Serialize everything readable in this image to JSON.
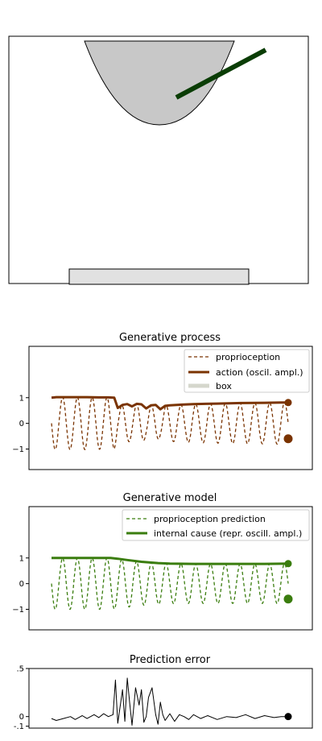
{
  "colors": {
    "action": "#7a3300",
    "proprio": "#7a3300",
    "model": "#3a7d0e",
    "box": "#d5d7cc",
    "arm": "#0a3d05",
    "cup": "#c8c8c8",
    "base": "#e1e1e1",
    "error": "#000000"
  },
  "scene": {
    "objects": [
      "cup",
      "arm",
      "base-box"
    ]
  },
  "chart_data": [
    {
      "type": "line",
      "title": "Generative process",
      "ylim": [
        -1.8,
        3.0
      ],
      "yticks": [
        {
          "v": 1,
          "label": "1"
        },
        {
          "v": 0,
          "label": "0"
        },
        {
          "v": -1,
          "label": "−1"
        }
      ],
      "legend": [
        "proprioception",
        "action (oscil. ampl.)",
        "box"
      ],
      "legend_position": "top-right",
      "series": [
        {
          "name": "action (oscil. ampl.)",
          "x": [
            0,
            0.02,
            0.05,
            0.1,
            0.15,
            0.2,
            0.24,
            0.265,
            0.28,
            0.3,
            0.32,
            0.34,
            0.36,
            0.38,
            0.4,
            0.42,
            0.44,
            0.46,
            0.48,
            0.5,
            0.55,
            0.6,
            0.7,
            0.8,
            0.9,
            0.97,
            1.0
          ],
          "values": [
            1.0,
            1.02,
            1.02,
            1.02,
            1.02,
            1.01,
            1.01,
            1.0,
            0.6,
            0.72,
            0.75,
            0.66,
            0.76,
            0.74,
            0.58,
            0.7,
            0.72,
            0.55,
            0.68,
            0.7,
            0.73,
            0.75,
            0.77,
            0.79,
            0.8,
            0.81,
            0.81
          ],
          "end_marker": 0.81
        },
        {
          "name": "proprioception",
          "cycles": 16,
          "end_marker": -0.6
        }
      ]
    },
    {
      "type": "line",
      "title": "Generative model",
      "ylim": [
        -1.8,
        3.0
      ],
      "yticks": [
        {
          "v": 1,
          "label": "1"
        },
        {
          "v": 0,
          "label": "0"
        },
        {
          "v": -1,
          "label": "−1"
        }
      ],
      "legend": [
        "proprioception prediction",
        "internal cause (repr. oscill. ampl.)"
      ],
      "legend_position": "top-right",
      "series": [
        {
          "name": "internal cause (repr. oscill. ampl.)",
          "x": [
            0,
            0.1,
            0.2,
            0.25,
            0.28,
            0.32,
            0.38,
            0.45,
            0.5,
            0.6,
            0.7,
            0.8,
            0.9,
            1.0
          ],
          "values": [
            1.0,
            1.0,
            1.0,
            1.0,
            0.97,
            0.92,
            0.85,
            0.8,
            0.78,
            0.77,
            0.77,
            0.77,
            0.77,
            0.78
          ],
          "end_marker": 0.78
        },
        {
          "name": "proprioception prediction",
          "cycles": 16,
          "end_marker": -0.6
        }
      ]
    },
    {
      "type": "line",
      "title": "Prediction error",
      "ylim": [
        -0.12,
        0.5
      ],
      "yticks": [
        {
          "v": 0.5,
          "label": ".5"
        },
        {
          "v": 0,
          "label": "0"
        },
        {
          "v": -0.1,
          "label": "-.1"
        }
      ],
      "series": [
        {
          "name": "prediction error",
          "x": [
            0,
            0.02,
            0.05,
            0.08,
            0.1,
            0.13,
            0.15,
            0.18,
            0.2,
            0.22,
            0.24,
            0.26,
            0.27,
            0.28,
            0.3,
            0.31,
            0.32,
            0.33,
            0.34,
            0.355,
            0.37,
            0.38,
            0.39,
            0.4,
            0.41,
            0.425,
            0.44,
            0.45,
            0.46,
            0.47,
            0.48,
            0.5,
            0.52,
            0.54,
            0.56,
            0.58,
            0.6,
            0.63,
            0.66,
            0.7,
            0.74,
            0.78,
            0.82,
            0.86,
            0.9,
            0.94,
            0.97,
            1.0
          ],
          "values": [
            -0.02,
            -0.04,
            -0.02,
            0.0,
            -0.03,
            0.01,
            -0.02,
            0.02,
            -0.01,
            0.03,
            0.0,
            0.02,
            0.38,
            -0.07,
            0.28,
            -0.05,
            0.4,
            0.15,
            -0.09,
            0.3,
            0.12,
            0.28,
            -0.06,
            0.0,
            0.2,
            0.3,
            0.02,
            -0.08,
            0.15,
            0.02,
            -0.04,
            0.03,
            -0.05,
            0.02,
            0.0,
            -0.03,
            0.02,
            -0.02,
            0.01,
            -0.03,
            0.0,
            -0.01,
            0.02,
            -0.02,
            0.01,
            -0.01,
            0.0,
            0.0
          ],
          "end_marker": 0.0
        }
      ]
    }
  ]
}
